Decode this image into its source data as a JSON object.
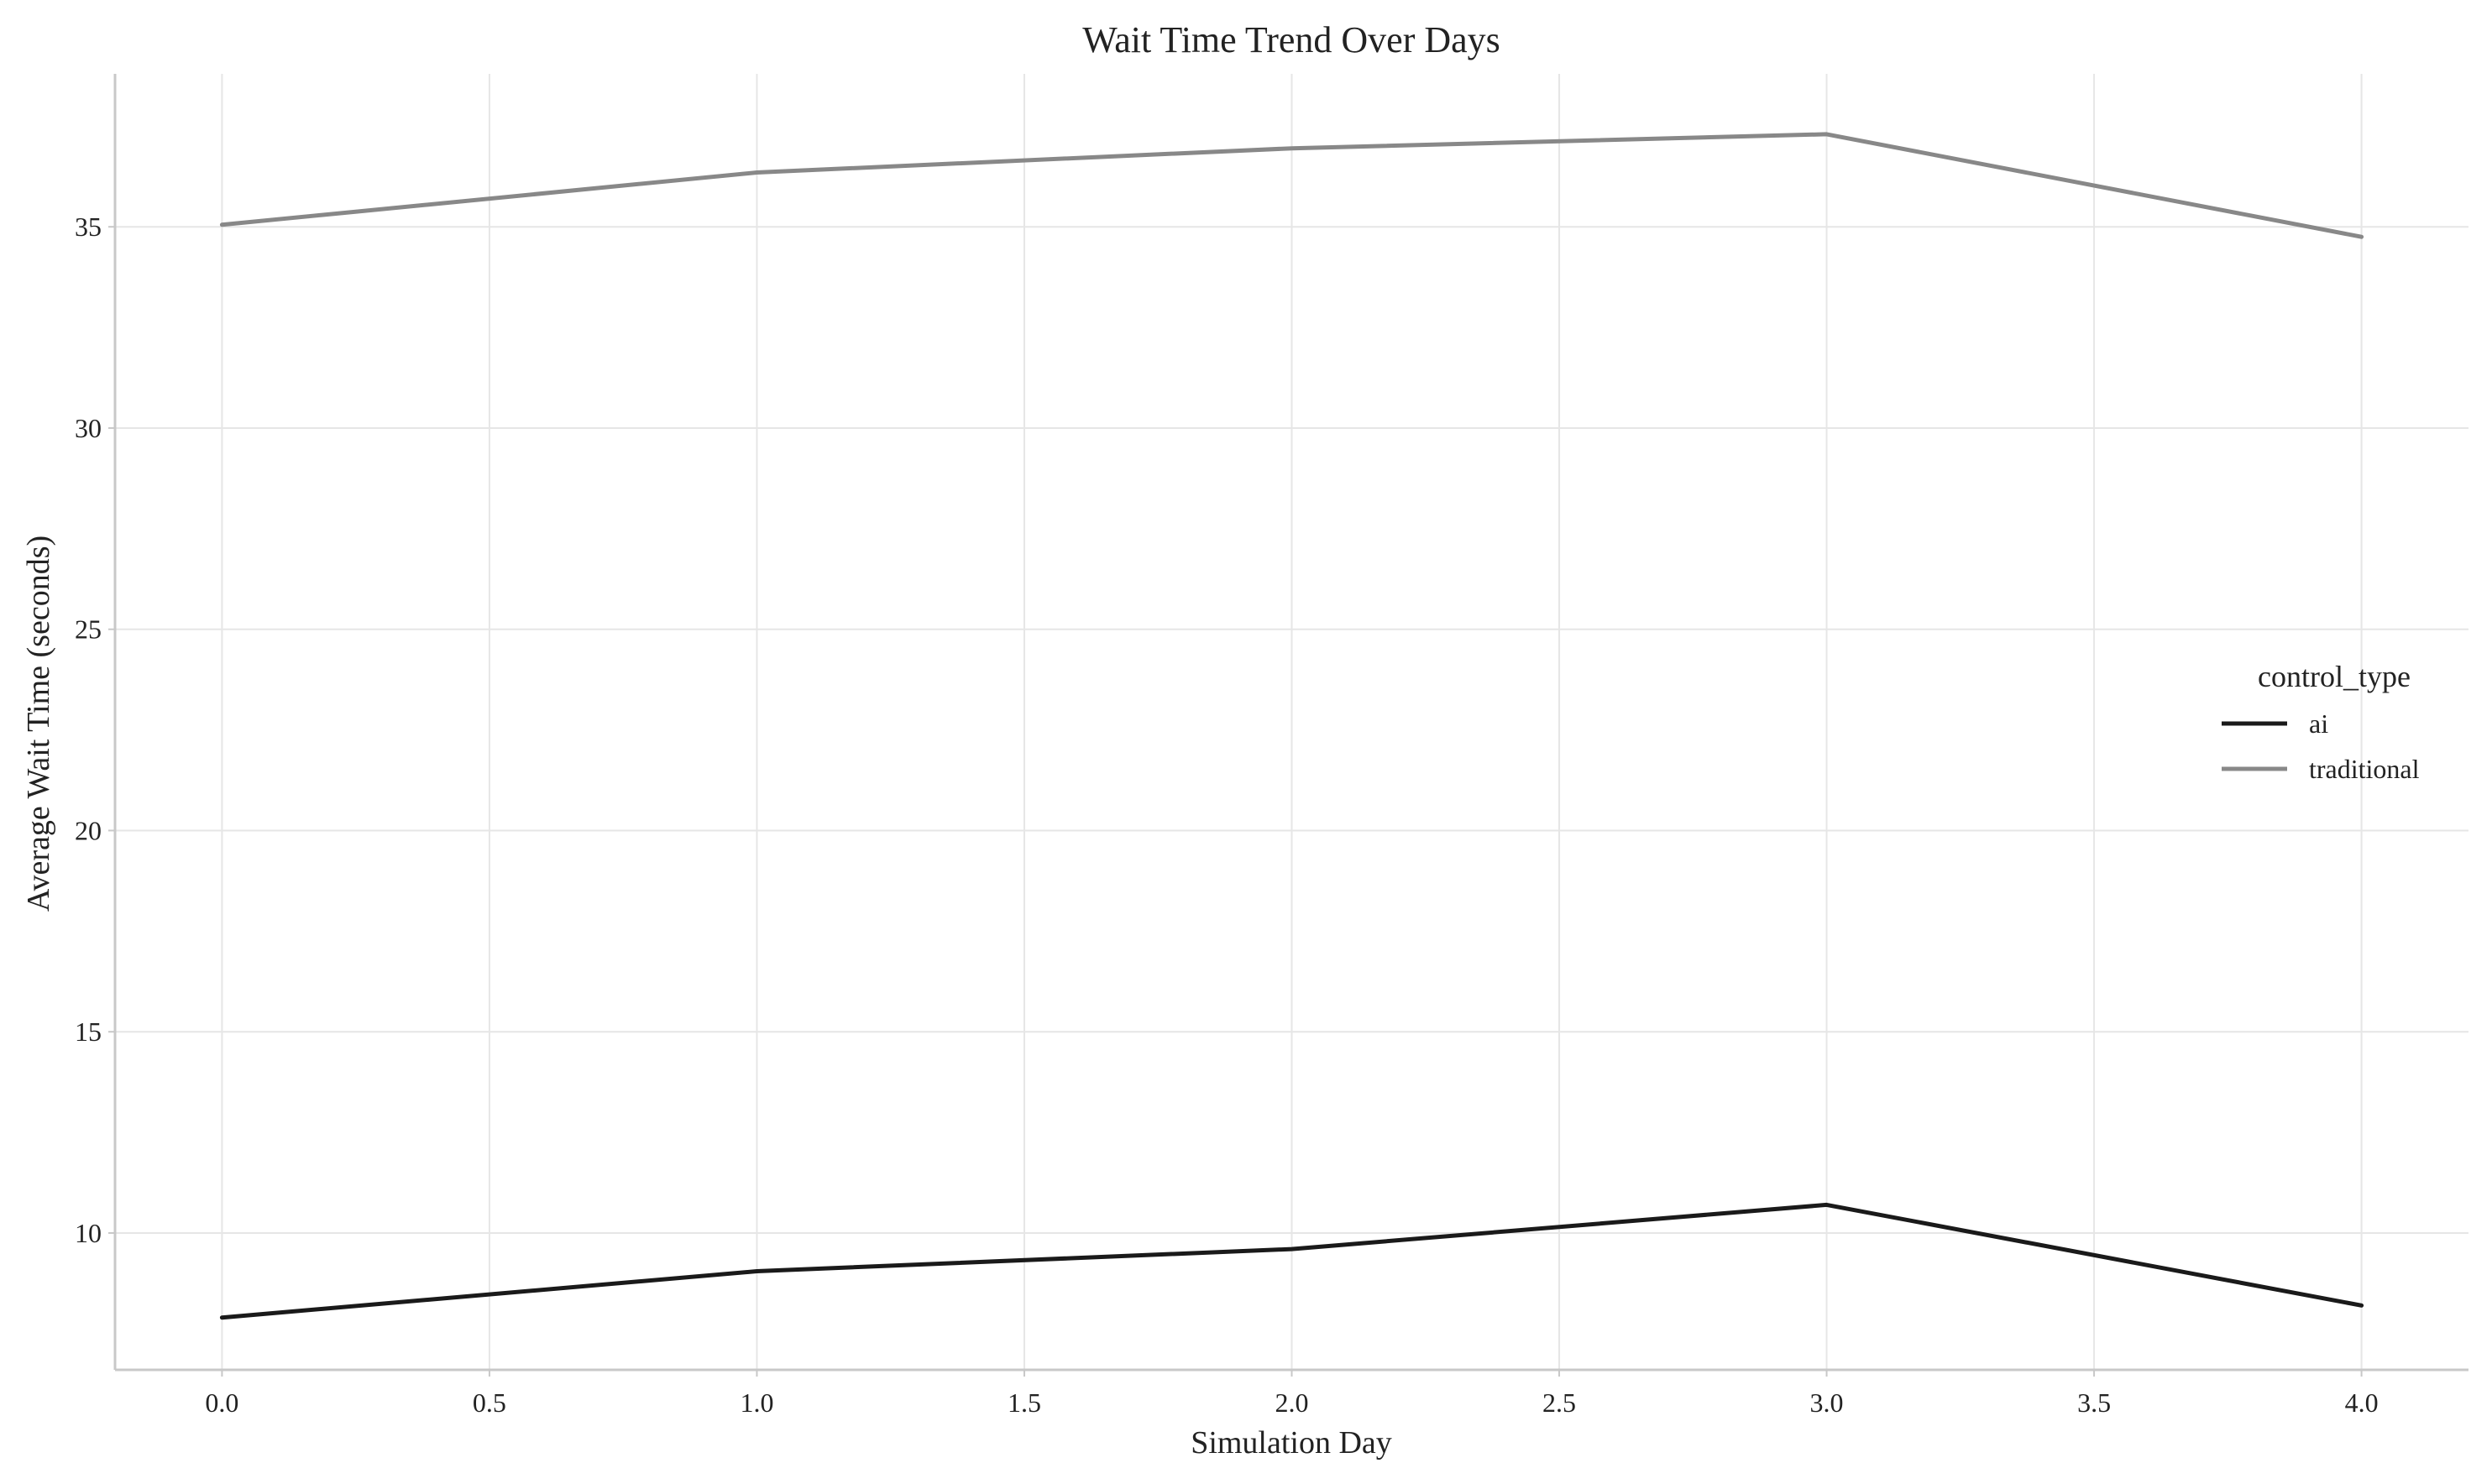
{
  "chart_data": {
    "type": "line",
    "title": "Wait Time Trend Over Days",
    "xlabel": "Simulation Day",
    "ylabel": "Average Wait Time (seconds)",
    "x": [
      0,
      1,
      2,
      3,
      4
    ],
    "xlim": [
      -0.2,
      4.2
    ],
    "ylim": [
      6.6,
      38.8
    ],
    "xticks": [
      0.0,
      0.5,
      1.0,
      1.5,
      2.0,
      2.5,
      3.0,
      3.5,
      4.0
    ],
    "xtick_labels": [
      "0.0",
      "0.5",
      "1.0",
      "1.5",
      "2.0",
      "2.5",
      "3.0",
      "3.5",
      "4.0"
    ],
    "yticks": [
      10,
      15,
      20,
      25,
      30,
      35
    ],
    "ytick_labels": [
      "10",
      "15",
      "20",
      "25",
      "30",
      "35"
    ],
    "grid": true,
    "legend": {
      "title": "control_type",
      "placement": "center-right"
    },
    "series": [
      {
        "name": "ai",
        "color": "#1a1a1a",
        "values": [
          7.9,
          9.05,
          9.6,
          10.7,
          8.2
        ]
      },
      {
        "name": "traditional",
        "color": "#888888",
        "values": [
          35.05,
          36.35,
          36.95,
          37.3,
          34.75
        ]
      }
    ]
  }
}
